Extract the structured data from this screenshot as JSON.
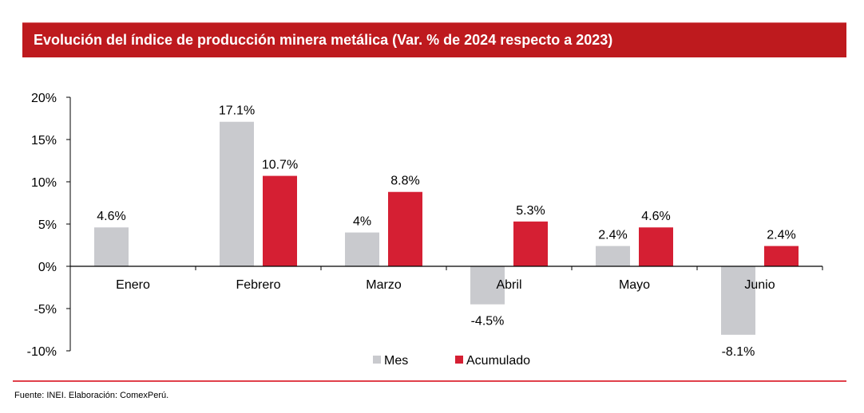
{
  "chart_data": {
    "type": "bar",
    "title": "Evolución del índice de producción minera metálica (Var. % de 2024 respecto a 2023)",
    "xlabel": "",
    "ylabel": "",
    "categories": [
      "Enero",
      "Febrero",
      "Marzo",
      "Abril",
      "Mayo",
      "Junio"
    ],
    "series": [
      {
        "name": "Mes",
        "color": "#c9cace",
        "values": [
          4.6,
          17.1,
          4.0,
          -4.5,
          2.4,
          -8.1
        ],
        "labels": [
          "4.6%",
          "17.1%",
          "4%",
          "-4.5%",
          "2.4%",
          "-8.1%"
        ]
      },
      {
        "name": "Acumulado",
        "color": "#d51f33",
        "values": [
          null,
          10.7,
          8.8,
          5.3,
          4.6,
          2.4
        ],
        "labels": [
          "",
          "10.7%",
          "8.8%",
          "5.3%",
          "4.6%",
          "2.4%"
        ]
      }
    ],
    "ylim": [
      -10,
      20
    ],
    "yticks": [
      20,
      15,
      10,
      5,
      0,
      -5,
      -10
    ],
    "ytick_labels": [
      "20%",
      "15%",
      "10%",
      "5%",
      "0%",
      "-5%",
      "-10%"
    ],
    "grid": false,
    "legend": "bottom-center"
  },
  "footer": {
    "source": "Fuente: INEI. Elaboración: ComexPerú."
  },
  "colors": {
    "title_bar": "#be1a1e",
    "rule": "#e0404a"
  }
}
